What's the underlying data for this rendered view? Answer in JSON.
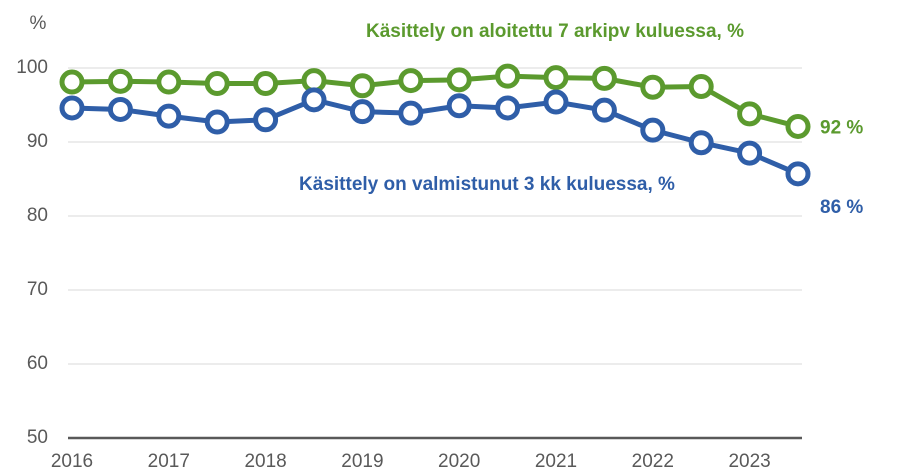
{
  "chart_data": {
    "type": "line",
    "ylabel": "%",
    "categories": [
      "2016",
      null,
      "2017",
      null,
      "2018",
      null,
      "2019",
      null,
      "2020",
      null,
      "2021",
      null,
      "2022",
      null,
      "2023",
      null
    ],
    "series": [
      {
        "name": "Käsittely on aloitettu 7 arkipv kuluessa, %",
        "color": "#5b9a2e",
        "values": [
          98.1,
          98.2,
          98.1,
          97.9,
          97.9,
          98.3,
          97.6,
          98.3,
          98.4,
          98.9,
          98.7,
          98.6,
          97.4,
          97.5,
          93.8,
          92.1
        ],
        "value_labels": [
          null,
          null,
          null,
          null,
          null,
          null,
          null,
          null,
          null,
          null,
          null,
          null,
          null,
          null,
          null,
          "92  %"
        ]
      },
      {
        "name": "Käsittely on valmistunut 3 kk kuluessa, %",
        "color": "#2f5ea8",
        "values": [
          94.6,
          94.4,
          93.5,
          92.7,
          93.0,
          95.7,
          94.1,
          93.9,
          94.9,
          94.6,
          95.4,
          94.3,
          91.6,
          89.9,
          88.5,
          85.7
        ],
        "value_labels": [
          null,
          null,
          null,
          null,
          null,
          null,
          null,
          null,
          null,
          null,
          null,
          null,
          null,
          null,
          null,
          "86 %"
        ]
      }
    ],
    "ylim": [
      50,
      100
    ],
    "yticks": [
      50,
      60,
      70,
      80,
      90,
      100
    ],
    "grid": true
  }
}
